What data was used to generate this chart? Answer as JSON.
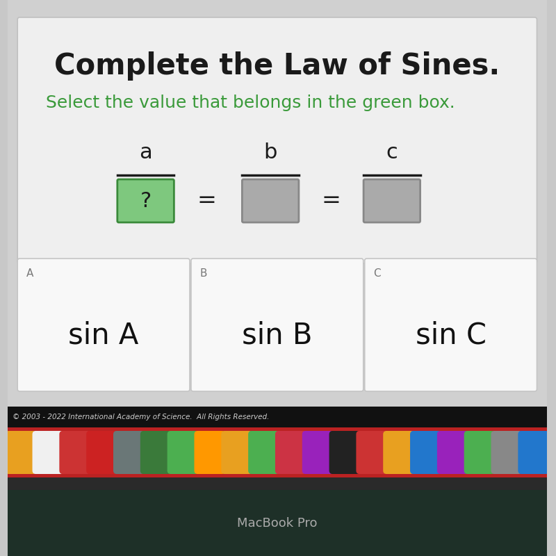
{
  "title": "Complete the Law of Sines.",
  "subtitle": "Select the value that belongs in the green box.",
  "title_color": "#1a1a1a",
  "subtitle_color": "#3a9a3a",
  "bg_outer": "#c8c8c8",
  "bg_screen": "#d0d0d0",
  "main_panel_bg": "#efefef",
  "main_panel_edge": "#c0c0c0",
  "fractions": [
    {
      "numerator": "a",
      "denominator": "?",
      "box_color": "#7ec87e",
      "border_color": "#3a8a3a"
    },
    {
      "numerator": "b",
      "denominator": "",
      "box_color": "#aaaaaa",
      "border_color": "#888888"
    },
    {
      "numerator": "c",
      "denominator": "",
      "box_color": "#aaaaaa",
      "border_color": "#888888"
    }
  ],
  "answers": [
    {
      "label": "A",
      "text": "sin A"
    },
    {
      "label": "B",
      "text": "sin B"
    },
    {
      "label": "C",
      "text": "sin C"
    }
  ],
  "copyright": "© 2003 - 2022 International Academy of Science.  All Rights Reserved.",
  "macbook_label": "MacBook Pro",
  "copyright_bar_color": "#111111",
  "dock_color": "#bb2222",
  "macbook_bg": "#1e3028",
  "macbook_bezel": "#2a2a2a",
  "icon_colors": [
    "#e8a020",
    "#f0f0f0",
    "#cc3333",
    "#cc2222",
    "#6a7777",
    "#3a7a3a",
    "#4CAF50",
    "#FF9800",
    "#e8a020",
    "#4CAF50",
    "#cc3344",
    "#9922bb",
    "#222222",
    "#cc3333",
    "#e8a020",
    "#2277cc",
    "#9922bb",
    "#4CAF50",
    "#888888",
    "#2277cc"
  ]
}
